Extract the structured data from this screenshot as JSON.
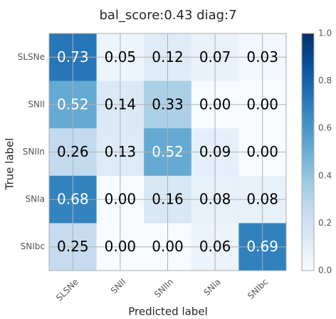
{
  "chart_data": {
    "type": "heatmap",
    "title": "bal_score:0.43 diag:7",
    "xlabel": "Predicted label",
    "ylabel": "True label",
    "x_categories": [
      "SLSNe",
      "SNII",
      "SNIIn",
      "SNIa",
      "SNIbc"
    ],
    "y_categories": [
      "SLSNe",
      "SNII",
      "SNIIn",
      "SNIa",
      "SNIbc"
    ],
    "values": [
      [
        0.73,
        0.05,
        0.12,
        0.07,
        0.03
      ],
      [
        0.52,
        0.14,
        0.33,
        0.0,
        0.0
      ],
      [
        0.26,
        0.13,
        0.52,
        0.09,
        0.0
      ],
      [
        0.68,
        0.0,
        0.16,
        0.08,
        0.08
      ],
      [
        0.25,
        0.0,
        0.0,
        0.06,
        0.69
      ]
    ],
    "cell_labels": [
      [
        "0.73",
        "0.05",
        "0.12",
        "0.07",
        "0.03"
      ],
      [
        "0.52",
        "0.14",
        "0.33",
        "0.00",
        "0.00"
      ],
      [
        "0.26",
        "0.13",
        "0.52",
        "0.09",
        "0.00"
      ],
      [
        "0.68",
        "0.00",
        "0.16",
        "0.08",
        "0.08"
      ],
      [
        "0.25",
        "0.00",
        "0.00",
        "0.06",
        "0.69"
      ]
    ],
    "colorbar": {
      "range": [
        0,
        1
      ],
      "ticks": [
        "0.0",
        "0.2",
        "0.4",
        "0.6",
        "0.8",
        "1.0"
      ],
      "colormap": "Blues"
    },
    "grid": true
  }
}
